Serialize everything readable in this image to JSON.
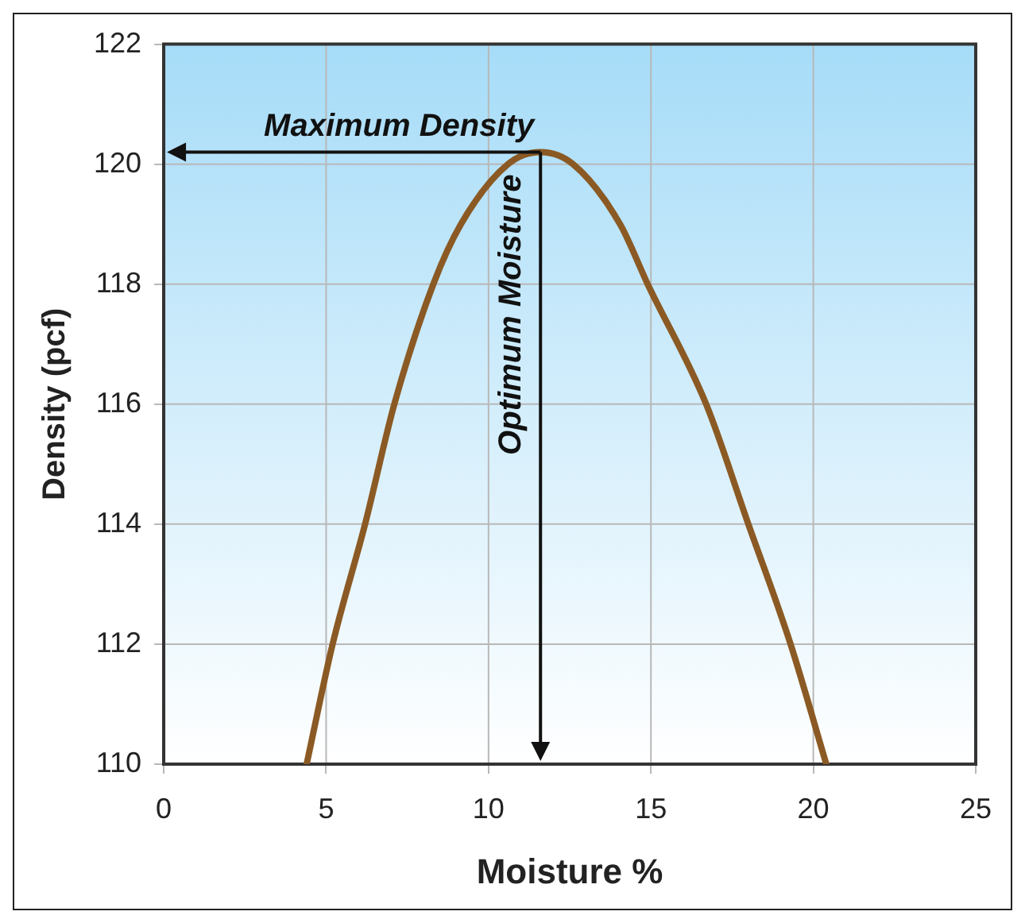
{
  "chart_data": {
    "type": "line",
    "xlabel": "Moisture %",
    "ylabel": "Density (pcf)",
    "x": [
      4.4,
      5.2,
      6.2,
      7.1,
      8.3,
      9.15,
      10.6,
      11.6,
      12.6,
      14.05,
      14.9,
      16.7,
      18.0,
      19.3,
      20.4
    ],
    "series": [
      {
        "color": "#8b5a24",
        "values": [
          110,
          112,
          114,
          116,
          118,
          119,
          120,
          120.2,
          120,
          119,
          118,
          116,
          114,
          112,
          110
        ]
      }
    ],
    "xlim": [
      0,
      25
    ],
    "xticks": [
      0,
      5,
      10,
      15,
      20,
      25
    ],
    "ylim": [
      110,
      122
    ],
    "yticks": [
      110,
      112,
      114,
      116,
      118,
      120,
      122
    ],
    "grid": true,
    "legend": false,
    "marker": "none",
    "line_style": "solid",
    "annotations": [
      {
        "text": "Maximum Density",
        "x": 11.6,
        "y": 120.2
      },
      {
        "text": "Optimum Moisture",
        "x": 11.6,
        "y": 120.2
      }
    ]
  }
}
